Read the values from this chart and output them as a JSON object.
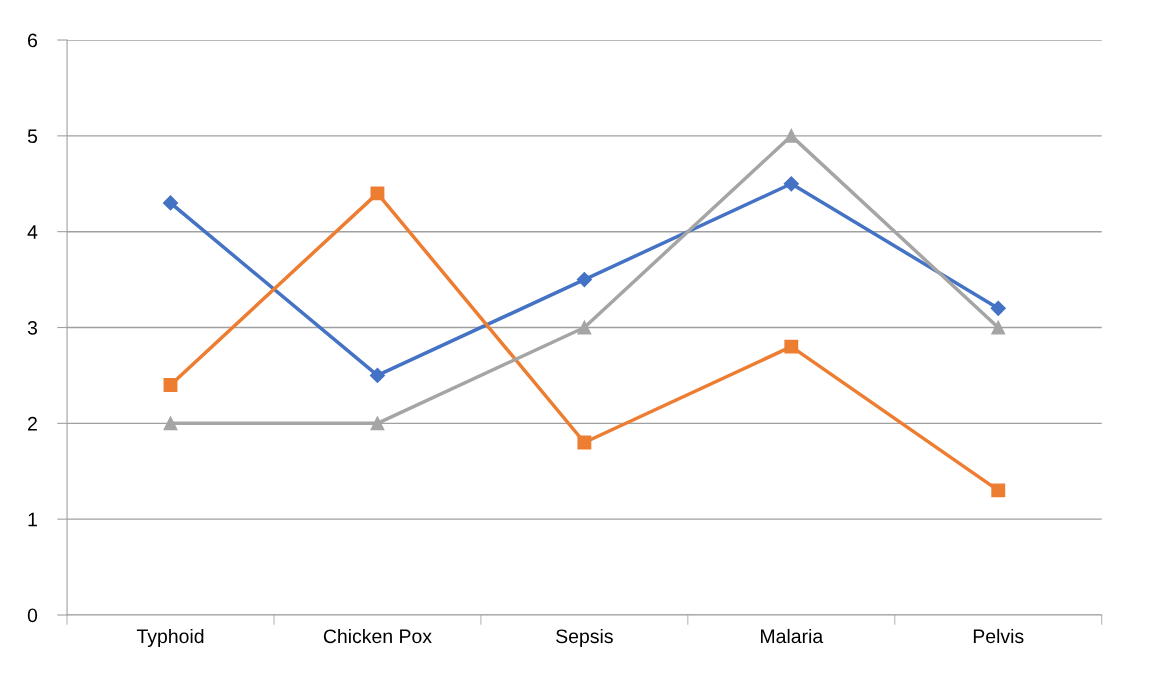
{
  "chart_data": {
    "type": "line",
    "categories": [
      "Typhoid",
      "Chicken Pox",
      "Sepsis",
      "Malaria",
      "Pelvis"
    ],
    "series": [
      {
        "color": "#4472c4",
        "marker": "diamond",
        "values": [
          4.3,
          2.5,
          3.5,
          4.5,
          3.2
        ]
      },
      {
        "color": "#ed7d31",
        "marker": "square",
        "values": [
          2.4,
          4.4,
          1.8,
          2.8,
          1.3
        ]
      },
      {
        "color": "#a5a5a5",
        "marker": "triangle",
        "values": [
          2,
          2,
          3,
          5,
          3
        ]
      }
    ],
    "ylim": [
      0,
      6
    ],
    "yticks": [
      0,
      1,
      2,
      3,
      4,
      5,
      6
    ],
    "grid": "y",
    "line_style": "solid"
  }
}
